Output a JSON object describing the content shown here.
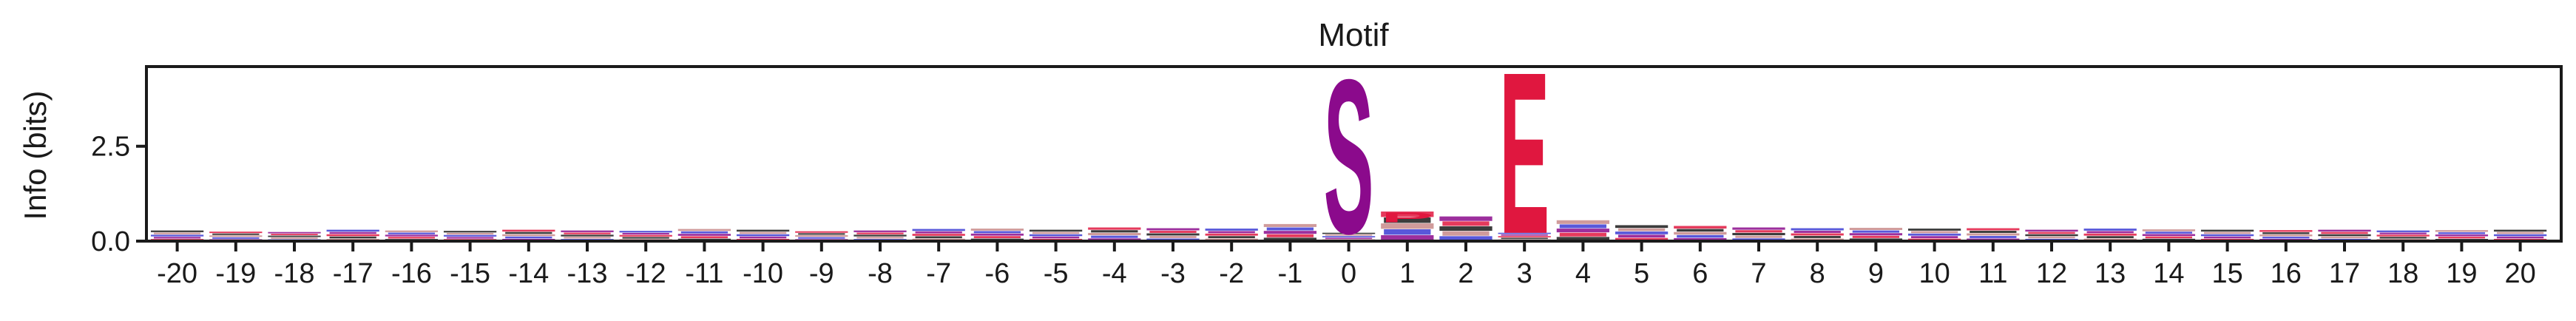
{
  "chart_data": {
    "type": "sequence-logo",
    "title": "Motif",
    "xlabel": "",
    "ylabel": "Info (bits)",
    "ylim": [
      0,
      4.6
    ],
    "yticks": [
      0.0,
      2.5
    ],
    "ytick_labels": [
      "0.0",
      "2.5"
    ],
    "grid": false,
    "positions": [
      -20,
      -19,
      -18,
      -17,
      -16,
      -15,
      -14,
      -13,
      -12,
      -11,
      -10,
      -9,
      -8,
      -7,
      -6,
      -5,
      -4,
      -3,
      -2,
      -1,
      0,
      1,
      2,
      3,
      4,
      5,
      6,
      7,
      8,
      9,
      10,
      11,
      12,
      13,
      14,
      15,
      16,
      17,
      18,
      19,
      20
    ],
    "position_labels": [
      "-20",
      "-19",
      "-18",
      "-17",
      "-16",
      "-15",
      "-14",
      "-13",
      "-12",
      "-11",
      "-10",
      "-9",
      "-8",
      "-7",
      "-6",
      "-5",
      "-4",
      "-3",
      "-2",
      "-1",
      "0",
      "1",
      "2",
      "3",
      "4",
      "5",
      "6",
      "7",
      "8",
      "9",
      "10",
      "11",
      "12",
      "13",
      "14",
      "15",
      "16",
      "17",
      "18",
      "19",
      "20"
    ],
    "background_info_bits": [
      0.28,
      0.25,
      0.24,
      0.3,
      0.28,
      0.27,
      0.3,
      0.28,
      0.27,
      0.32,
      0.3,
      0.26,
      0.28,
      0.32,
      0.33,
      0.3,
      0.36,
      0.34,
      0.33,
      0.45,
      4.4,
      0.78,
      0.65,
      4.6,
      0.55,
      0.42,
      0.4,
      0.36,
      0.34,
      0.35,
      0.33,
      0.34,
      0.3,
      0.33,
      0.31,
      0.3,
      0.29,
      0.3,
      0.28,
      0.29,
      0.3
    ],
    "dominant_letters": [
      {
        "position": 0,
        "letter": "S",
        "bits": 4.4,
        "color": "#8b0a8c"
      },
      {
        "position": 3,
        "letter": "E",
        "bits": 4.6,
        "color": "#e0173f"
      }
    ],
    "minor_letters": [
      {
        "position": 1,
        "letter": "P",
        "bits": 0.26,
        "color": "#e0173f"
      }
    ],
    "colors": {
      "acidic": "#e0173f",
      "polar": "#8b0a8c",
      "basic": "#3b3bd4",
      "hydrophobic": "#1a1a1a",
      "other": "#c88a8a"
    }
  }
}
